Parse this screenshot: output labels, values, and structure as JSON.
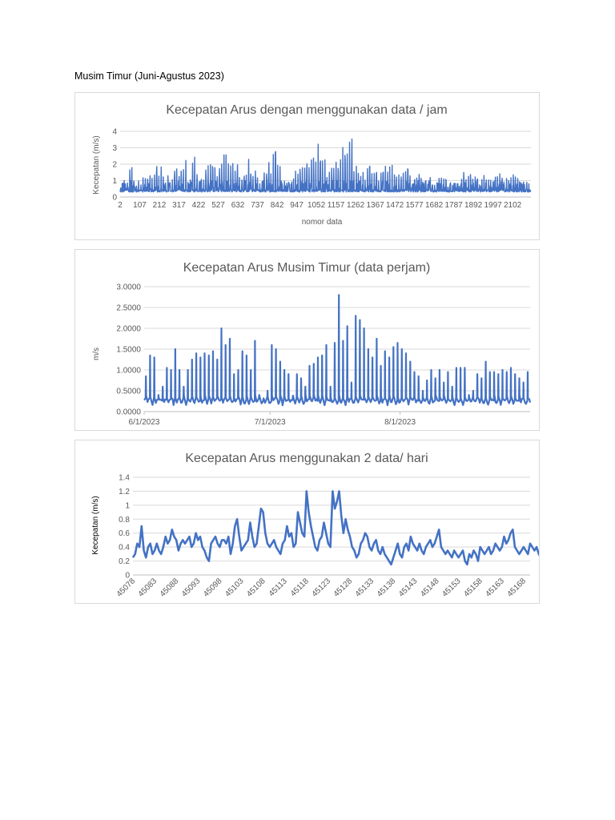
{
  "heading": "Musim Timur (Juni-Agustus 2023)",
  "chart_data": [
    {
      "type": "line",
      "title": "Kecepatan Arus dengan menggunakan data / jam",
      "xlabel": "nomor data",
      "ylabel": "Kecepatan (m/s)",
      "ylim": [
        0,
        4
      ],
      "yticks": [
        "0",
        "1",
        "2",
        "3",
        "4"
      ],
      "xticks": [
        "2",
        "107",
        "212",
        "317",
        "422",
        "527",
        "632",
        "737",
        "842",
        "947",
        "1052",
        "1157",
        "1262",
        "1367",
        "1472",
        "1577",
        "1682",
        "1787",
        "1892",
        "1997",
        "2102"
      ],
      "x_start": 2,
      "x_end": 2200,
      "grid": true,
      "series_color": "#4472c4",
      "daily_peaks": [
        0.9,
        1.1,
        1.8,
        1.2,
        1.3,
        1.2,
        1.4,
        1.9,
        2.0,
        2.2,
        1.5,
        1.2,
        2.0,
        1.6,
        2.5,
        1.3,
        2.5,
        1.6,
        1.2,
        2.1,
        2.3,
        1.8,
        2.1,
        2.6,
        2.4,
        2.2,
        2.0,
        1.6,
        2.4,
        1.7,
        1.8,
        1.4,
        2.3,
        2.3,
        3.1,
        2.9,
        1.0,
        1.1,
        1.3,
        2.2,
        2.5,
        2.3,
        2.4,
        3.0,
        3.5,
        2.5,
        2.1,
        2.6,
        2.7,
        3.2,
        4.0,
        3.6,
        2.2,
        1.9,
        1.8,
        1.9,
        1.5,
        1.7,
        2.0,
        2.1,
        2.3,
        2.0,
        1.6,
        2.2,
        1.9,
        1.3,
        1.5,
        1.4,
        1.3,
        1.2,
        1.1,
        1.3,
        1.2,
        1.0,
        1.2,
        0.9,
        1.6,
        1.3,
        1.5,
        1.4,
        1.2,
        1.4,
        1.3,
        1.5,
        1.6,
        1.2,
        1.3,
        1.5,
        1.4,
        1.0,
        0.9,
        1.0
      ]
    },
    {
      "type": "line",
      "title": "Kecepatan Arus Musim Timur (data perjam)",
      "xlabel": "",
      "ylabel": "m/s",
      "ylim": [
        0,
        3
      ],
      "yticks": [
        "0.0000",
        "0.5000",
        "1.0000",
        "1.5000",
        "2.0000",
        "2.5000",
        "3.0000"
      ],
      "xticks": [
        "6/1/2023",
        "7/1/2023",
        "8/1/2023"
      ],
      "x_range_days": [
        0,
        92
      ],
      "xtick_days": [
        0,
        30,
        61
      ],
      "grid": true,
      "series_color": "#4472c4",
      "daily_peaks": [
        0.85,
        1.35,
        1.3,
        0.4,
        0.6,
        1.05,
        1.0,
        1.5,
        1.0,
        0.6,
        1.0,
        1.25,
        1.4,
        1.3,
        1.4,
        1.35,
        1.45,
        1.25,
        2.0,
        1.6,
        1.75,
        0.9,
        1.0,
        1.45,
        1.35,
        1.0,
        1.7,
        0.4,
        0.3,
        0.5,
        1.6,
        1.5,
        1.2,
        1.0,
        0.9,
        0.35,
        0.9,
        0.8,
        0.6,
        1.1,
        1.15,
        1.3,
        1.35,
        1.6,
        0.6,
        1.65,
        2.8,
        1.7,
        2.05,
        0.7,
        2.3,
        2.2,
        2.0,
        1.5,
        1.3,
        1.75,
        1.1,
        1.45,
        1.3,
        1.55,
        1.65,
        1.5,
        1.4,
        1.2,
        0.95,
        0.85,
        0.5,
        0.75,
        1.0,
        0.8,
        1.0,
        0.7,
        0.95,
        0.6,
        1.05,
        1.05,
        1.05,
        0.4,
        0.5,
        0.9,
        0.8,
        1.2,
        0.95,
        0.95,
        0.9,
        1.0,
        0.95,
        1.05,
        0.9,
        0.8,
        0.7,
        0.95,
        0.7
      ]
    },
    {
      "type": "line",
      "title": "Kecepatan Arus menggunakan 2 data/ hari",
      "xlabel": "",
      "ylabel": "Kecepatan (m/s)",
      "ylim": [
        0,
        1.4
      ],
      "yticks": [
        "0",
        "0.2",
        "0.4",
        "0.6",
        "0.8",
        "1",
        "1.2",
        "1.4"
      ],
      "xticks": [
        "45078",
        "45083",
        "45088",
        "45093",
        "45098",
        "45103",
        "45108",
        "45113",
        "45118",
        "45123",
        "45128",
        "45133",
        "45138",
        "45143",
        "45148",
        "45153",
        "45158",
        "45163",
        "45168"
      ],
      "x_start": 45078,
      "x_end": 45169.5,
      "step": 0.5,
      "grid": true,
      "series_color": "#4472c4",
      "values": [
        0.25,
        0.3,
        0.45,
        0.4,
        0.7,
        0.35,
        0.25,
        0.4,
        0.45,
        0.3,
        0.35,
        0.45,
        0.35,
        0.3,
        0.4,
        0.55,
        0.45,
        0.5,
        0.65,
        0.55,
        0.5,
        0.35,
        0.45,
        0.5,
        0.45,
        0.5,
        0.55,
        0.4,
        0.45,
        0.6,
        0.5,
        0.55,
        0.4,
        0.35,
        0.25,
        0.2,
        0.45,
        0.5,
        0.55,
        0.45,
        0.4,
        0.5,
        0.5,
        0.45,
        0.55,
        0.3,
        0.45,
        0.7,
        0.8,
        0.55,
        0.35,
        0.4,
        0.45,
        0.5,
        0.75,
        0.55,
        0.4,
        0.45,
        0.7,
        0.95,
        0.9,
        0.6,
        0.45,
        0.4,
        0.45,
        0.5,
        0.4,
        0.35,
        0.3,
        0.45,
        0.5,
        0.7,
        0.55,
        0.6,
        0.4,
        0.45,
        0.9,
        0.75,
        0.6,
        0.55,
        1.2,
        0.9,
        0.7,
        0.55,
        0.4,
        0.35,
        0.5,
        0.55,
        0.75,
        0.6,
        0.45,
        0.4,
        1.2,
        0.95,
        1.05,
        1.2,
        0.85,
        0.6,
        0.8,
        0.65,
        0.55,
        0.4,
        0.35,
        0.25,
        0.3,
        0.45,
        0.5,
        0.6,
        0.55,
        0.4,
        0.35,
        0.45,
        0.5,
        0.35,
        0.3,
        0.4,
        0.3,
        0.25,
        0.2,
        0.15,
        0.25,
        0.35,
        0.45,
        0.3,
        0.25,
        0.4,
        0.45,
        0.35,
        0.55,
        0.45,
        0.4,
        0.35,
        0.45,
        0.35,
        0.3,
        0.4,
        0.45,
        0.5,
        0.4,
        0.45,
        0.55,
        0.65,
        0.4,
        0.35,
        0.3,
        0.35,
        0.3,
        0.25,
        0.35,
        0.3,
        0.25,
        0.3,
        0.35,
        0.2,
        0.15,
        0.3,
        0.25,
        0.35,
        0.3,
        0.2,
        0.4,
        0.35,
        0.3,
        0.35,
        0.4,
        0.3,
        0.35,
        0.45,
        0.4,
        0.35,
        0.4,
        0.55,
        0.45,
        0.5,
        0.6,
        0.65,
        0.4,
        0.35,
        0.3,
        0.35,
        0.4,
        0.35,
        0.3,
        0.45,
        0.4,
        0.35,
        0.4,
        0.3,
        0.25
      ]
    }
  ]
}
